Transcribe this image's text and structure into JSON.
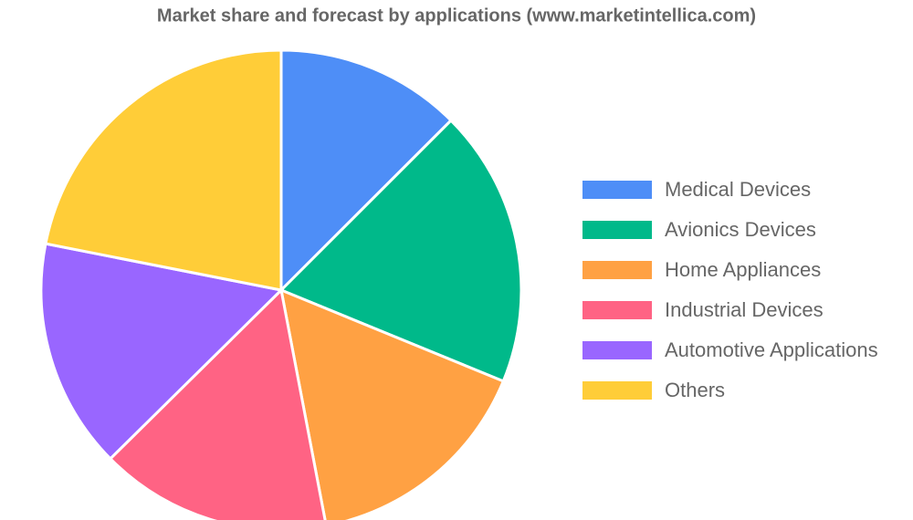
{
  "chart_data": {
    "type": "pie",
    "title": "Market share and forecast by applications (www.marketintellica.com)",
    "categories": [
      "Medical Devices",
      "Avionics Devices",
      "Home Appliances",
      "Industrial Devices",
      "Automotive Applications",
      "Others"
    ],
    "values": [
      12.5,
      18.7,
      15.8,
      15.6,
      15.5,
      21.9
    ],
    "colors": [
      "#4e8ef7",
      "#00b98a",
      "#ffa143",
      "#ff6384",
      "#9966ff",
      "#ffcd38"
    ],
    "legend": "right"
  }
}
